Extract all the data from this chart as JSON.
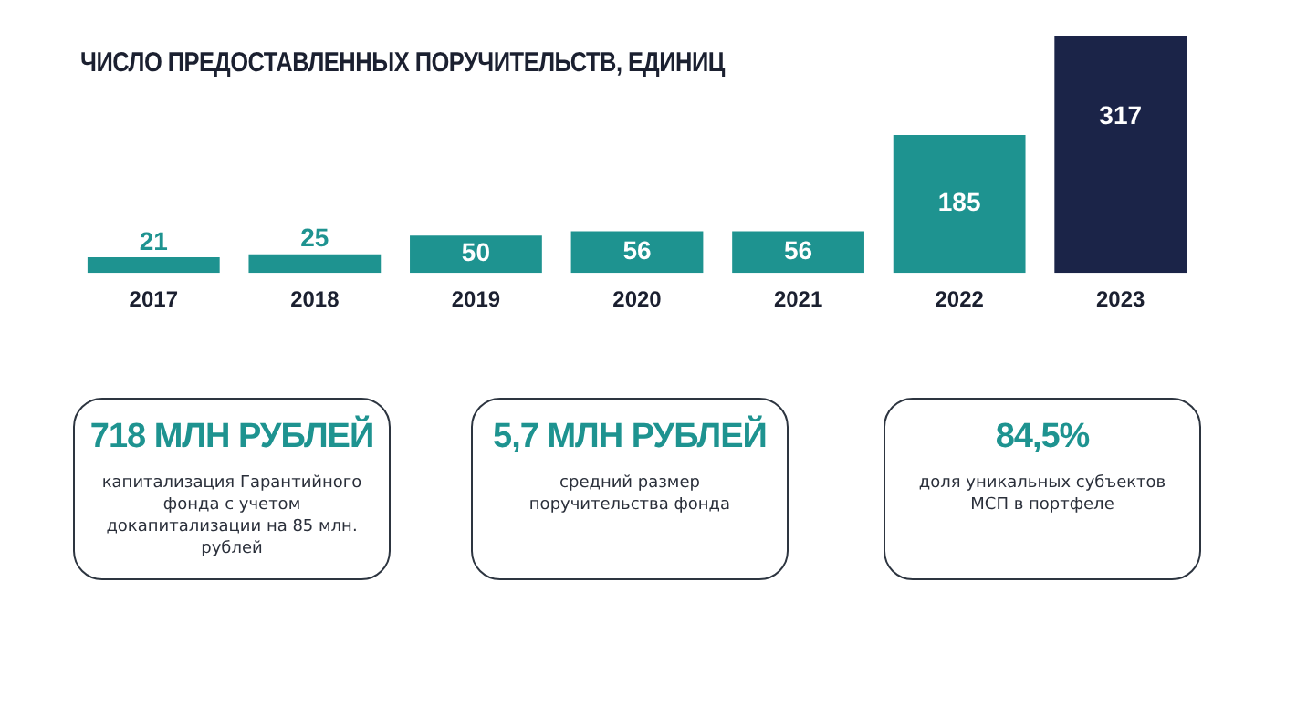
{
  "chart_data": {
    "type": "bar",
    "title": "ЧИСЛО ПРЕДОСТАВЛЕННЫХ ПОРУЧИТЕЛЬСТВ, ЕДИНИЦ",
    "categories": [
      "2017",
      "2018",
      "2019",
      "2020",
      "2021",
      "2022",
      "2023"
    ],
    "values": [
      21,
      25,
      50,
      56,
      56,
      185,
      317
    ],
    "colors": [
      "#1e9390",
      "#1e9390",
      "#1e9390",
      "#1e9390",
      "#1e9390",
      "#1e9390",
      "#1b2448"
    ],
    "data_labels": true,
    "grid": false,
    "legend": false,
    "annotations": [
      "718 МЛН РУБЛЕЙ",
      "капитализация Гарантийного фонда с учетом докапитализации на 85 млн. рублей",
      "5,7 МЛН РУБЛЕЙ",
      "средний размер поручительства фонда",
      "84,5%",
      "доля уникальных субъектов МСП в портфеле"
    ]
  }
}
